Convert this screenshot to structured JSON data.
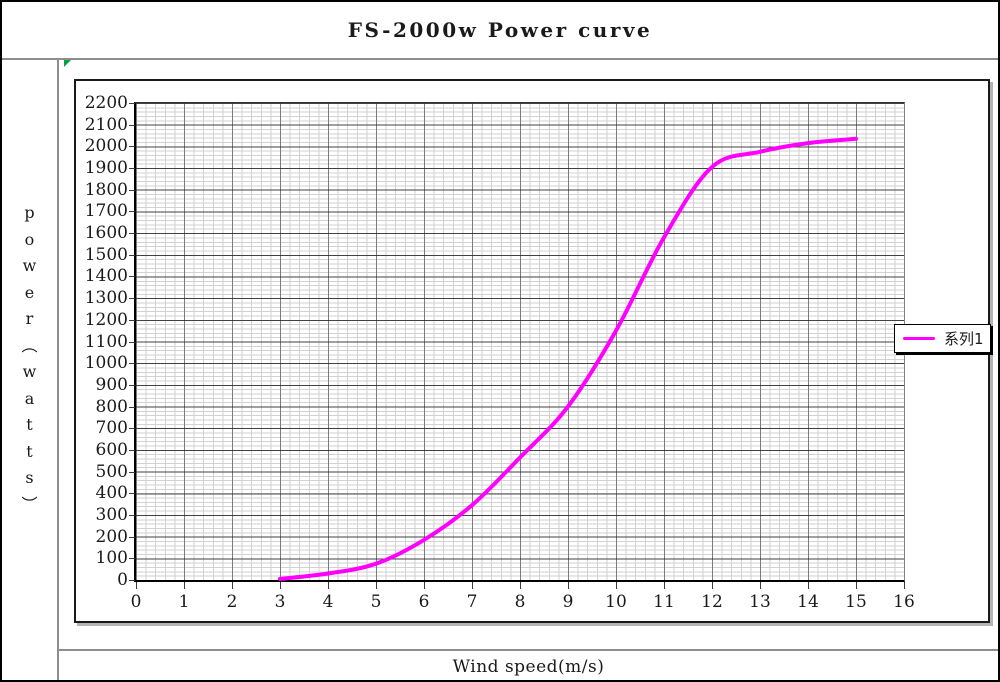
{
  "title": "FS-2000w Power curve",
  "y_axis_title_vertical": "p\no\nw\ne\nr\n︵\nw\na\nt\nt\ns\n︶",
  "x_axis_title": "Wind speed(m/s)",
  "legend": {
    "series_label": "系列1"
  },
  "colors": {
    "curve": "#ff00ff",
    "major_h_grid": "#2a2a2a",
    "major_v_grid": "#5f5f5f",
    "minor_grid": "#d2d2d2",
    "separator": "#8e8e8e",
    "selection_triangle": "#00a33c"
  },
  "chart_data": {
    "type": "line",
    "title": "FS-2000w Power curve",
    "xlabel": "Wind speed(m/s)",
    "ylabel": "power(watts)",
    "series": [
      {
        "name": "系列1",
        "color": "#ff00ff",
        "x": [
          3,
          4,
          5,
          6,
          7,
          8,
          9,
          10,
          11,
          12,
          13,
          14,
          15
        ],
        "values": [
          5,
          30,
          75,
          185,
          345,
          565,
          800,
          1150,
          1580,
          1905,
          1975,
          2015,
          2035
        ]
      }
    ],
    "xlim": [
      0,
      16
    ],
    "ylim": [
      0,
      2200
    ],
    "x_ticks": [
      0,
      1,
      2,
      3,
      4,
      5,
      6,
      7,
      8,
      9,
      10,
      11,
      12,
      13,
      14,
      15,
      16
    ],
    "y_ticks": [
      0,
      100,
      200,
      300,
      400,
      500,
      600,
      700,
      800,
      900,
      1000,
      1100,
      1200,
      1300,
      1400,
      1500,
      1600,
      1700,
      1800,
      1900,
      2000,
      2100,
      2200
    ],
    "grid": "major and minor, both axes",
    "legend_position": "right",
    "line_smoothing": true
  }
}
